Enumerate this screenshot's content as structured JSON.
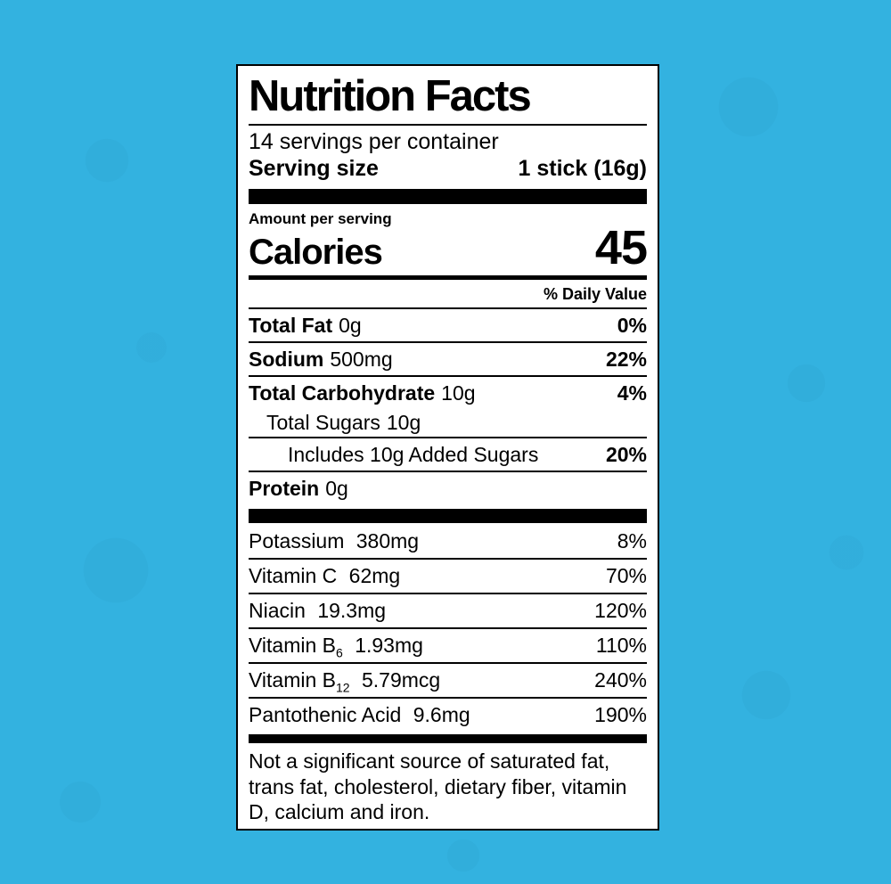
{
  "colors": {
    "background": "#33B2E0",
    "label_background": "#FFFFFF",
    "text": "#000000"
  },
  "label": {
    "title": "Nutrition Facts",
    "servings_per_container": "14 servings per container",
    "serving_size": {
      "label": "Serving size",
      "value": "1 stick (16g)"
    },
    "amount_per_serving": "Amount per serving",
    "calories": {
      "label": "Calories",
      "value": "45"
    },
    "daily_value_header": "% Daily Value",
    "nutrients": [
      {
        "name": "Total Fat",
        "amount": "0g",
        "dv": "0%"
      },
      {
        "name": "Sodium",
        "amount": "500mg",
        "dv": "22%"
      },
      {
        "name": "Total Carbohydrate",
        "amount": "10g",
        "dv": "4%"
      },
      {
        "name": "Total Sugars",
        "amount": "10g",
        "dv": ""
      },
      {
        "name": "Includes 10g Added Sugars",
        "amount": "",
        "dv": "20%"
      },
      {
        "name": "Protein",
        "amount": "0g",
        "dv": ""
      }
    ],
    "micronutrients": [
      {
        "name": "Potassium",
        "sub": "",
        "amount": "380mg",
        "dv": "8%"
      },
      {
        "name": "Vitamin C",
        "sub": "",
        "amount": "62mg",
        "dv": "70%"
      },
      {
        "name": "Niacin",
        "sub": "",
        "amount": "19.3mg",
        "dv": "120%"
      },
      {
        "name": "Vitamin B",
        "sub": "6",
        "amount": "1.93mg",
        "dv": "110%"
      },
      {
        "name": "Vitamin B",
        "sub": "12",
        "amount": "5.79mcg",
        "dv": "240%"
      },
      {
        "name": "Pantothenic Acid",
        "sub": "",
        "amount": "9.6mg",
        "dv": "190%"
      }
    ],
    "footnote": "Not a significant source of saturated fat, trans fat, cholesterol, dietary fiber, vitamin D, calcium and iron."
  }
}
